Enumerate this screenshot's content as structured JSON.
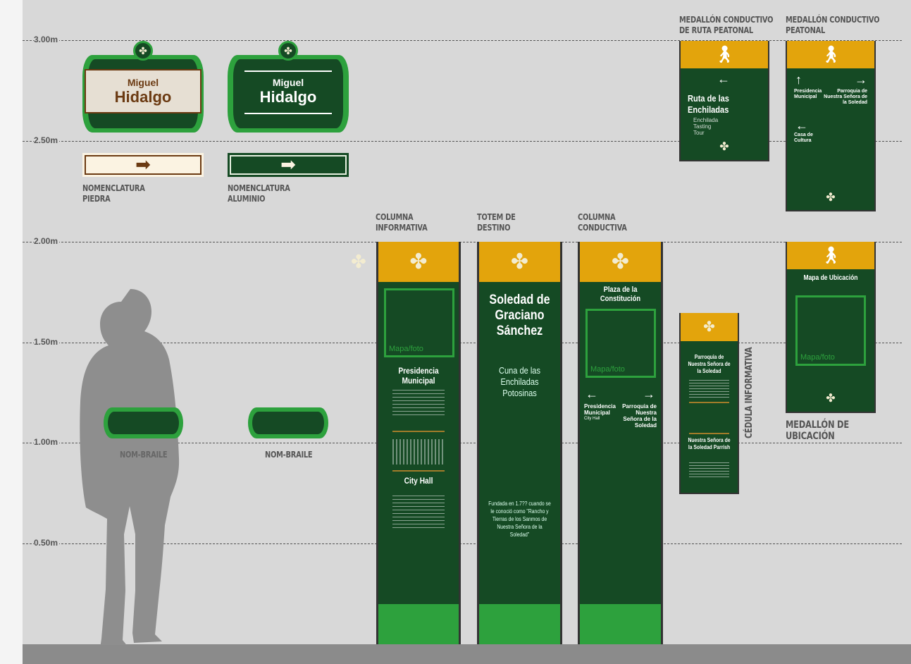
{
  "scale": {
    "levels": [
      "3.00m",
      "2.50m",
      "2.00m",
      "1.50m",
      "1.00m",
      "0.50m"
    ]
  },
  "street_signs": {
    "stone": {
      "first": "Miguel",
      "last": "Hidalgo",
      "caption": [
        "NOMENCLATURA",
        "PIEDRA"
      ],
      "colors": {
        "text": "#6b3a12",
        "bg": "#e6dfd3"
      }
    },
    "aluminum": {
      "first": "Miguel",
      "last": "Hidalgo",
      "caption": [
        "NOMENCLATURA",
        "ALUMINIO"
      ],
      "colors": {
        "text": "#ffffff",
        "bg": "#154a24"
      }
    }
  },
  "braille": {
    "left": "NOM-BRAILE",
    "right": "NOM-BRAILE"
  },
  "columna_informativa": {
    "caption": [
      "COLUMNA",
      "INFORMATIVA"
    ],
    "map_label": "Mapa/foto",
    "title_es": "Presidencia Municipal",
    "title_en": "City Hall"
  },
  "totem": {
    "caption": [
      "TOTEM DE",
      "DESTINO"
    ],
    "title": "Soledad de Graciano Sánchez",
    "subtitle": "Cuna de las Enchiladas Potosinas",
    "footer": "Fundada en 1.7?? cuando se le conoció como \"Rancho y Tierras de los Sanmos de Nuestra Señora de la Soledad\""
  },
  "columna_conductiva": {
    "caption": [
      "COLUMNA",
      "CONDUCTIVA"
    ],
    "title": "Plaza de la Constitución",
    "map_label": "Mapa/foto",
    "left_dest": "Presidencia Municipal",
    "left_sub": "City Hall",
    "right_dest": "Parroquia de Nuestra Señora de la Soledad"
  },
  "medallon_ruta": {
    "caption": [
      "MEDALLÓN CONDUCTIVO",
      "DE RUTA PEATONAL"
    ],
    "title": "Ruta de las Enchiladas",
    "subtitle": "Enchilada Tasting Tour"
  },
  "medallon_peatonal": {
    "caption": [
      "MEDALLÓN CONDUCTIVO",
      "PEATONAL"
    ],
    "up_dest": "Presidencia Municipal",
    "right_dest": "Parroquia de Nuestra Señora de la Soledad",
    "left_dest": "Casa de Cultura"
  },
  "medallon_ubicacion": {
    "caption": [
      "MEDALLÓN DE",
      "UBICACIÓN"
    ],
    "title": "Mapa de Ubicación",
    "map_label": "Mapa/foto"
  },
  "cedula": {
    "caption": "CÉDULA INFORMATIVA",
    "title_es": "Parroquia de Nuestra Señora de la Soledad",
    "title_en": "Nuestra Señora de la Soledad Parrish"
  },
  "colors": {
    "green": "#154a24",
    "light_green": "#2da13d",
    "orange": "#e3a40c"
  },
  "icons": {
    "logo": "pinwheel-icon",
    "pedestrian": "pedestrian-icon"
  }
}
